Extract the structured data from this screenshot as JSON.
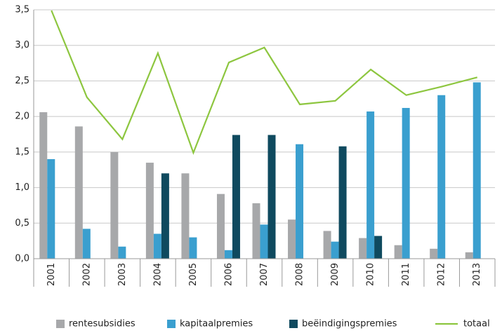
{
  "chart_data": {
    "type": "bar_line",
    "categories": [
      "2001",
      "2002",
      "2003",
      "2004",
      "2005",
      "2006",
      "2007",
      "2008",
      "2009",
      "2010",
      "2011",
      "2012",
      "2013"
    ],
    "series": [
      {
        "name": "rentesubsidies",
        "color": "#a7a8aa",
        "type": "bar",
        "values": [
          2.06,
          1.86,
          1.5,
          1.35,
          1.2,
          0.91,
          0.78,
          0.55,
          0.39,
          0.29,
          0.19,
          0.14,
          0.09
        ]
      },
      {
        "name": "kapitaalpremies",
        "color": "#3a9fcf",
        "type": "bar",
        "values": [
          1.4,
          0.42,
          0.17,
          0.35,
          0.3,
          0.12,
          0.48,
          1.61,
          0.24,
          2.07,
          2.12,
          2.3,
          2.48
        ]
      },
      {
        "name": "beëindigingspremies",
        "color": "#0f4a5f",
        "type": "bar",
        "values": [
          null,
          null,
          null,
          1.2,
          null,
          1.74,
          1.74,
          null,
          1.58,
          0.32,
          null,
          null,
          null
        ]
      },
      {
        "name": "totaal",
        "color": "#8dc63f",
        "type": "line",
        "values": [
          3.49,
          2.27,
          1.68,
          2.89,
          1.49,
          2.76,
          2.97,
          2.17,
          2.22,
          2.66,
          2.3,
          2.42,
          2.55
        ]
      }
    ],
    "ylim": [
      0,
      3.5
    ],
    "yticks": [
      {
        "value": 0,
        "label": "0,0"
      },
      {
        "value": 0.5,
        "label": "0,5"
      },
      {
        "value": 1,
        "label": "1,0"
      },
      {
        "value": 1.5,
        "label": "1,5"
      },
      {
        "value": 2,
        "label": "2,0"
      },
      {
        "value": 2.5,
        "label": "2,5"
      },
      {
        "value": 3,
        "label": "3,0"
      },
      {
        "value": 3.5,
        "label": "3,5"
      }
    ],
    "grid": true,
    "legend": "bottom"
  }
}
